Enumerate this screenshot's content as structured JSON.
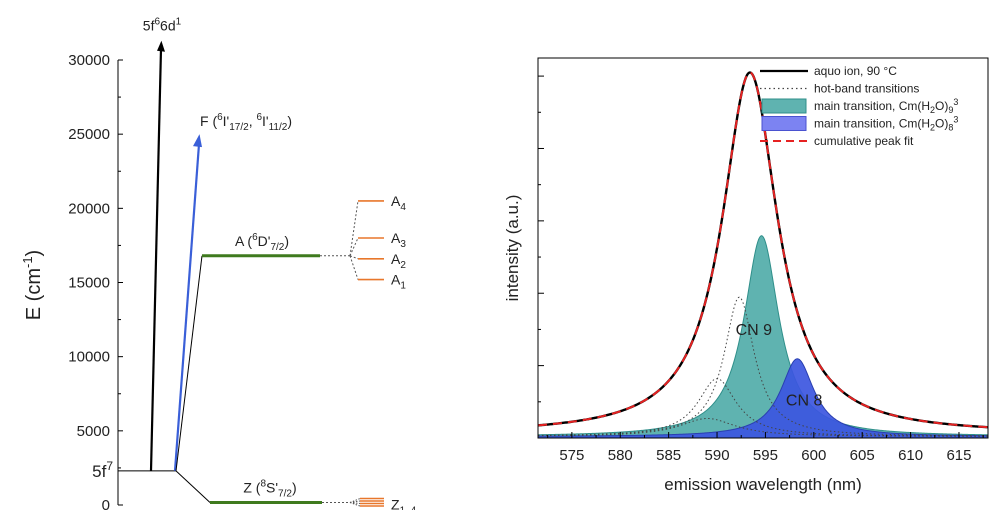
{
  "colors": {
    "black": "#000000",
    "blue": "#3a5fd8",
    "green": "#3f7a1e",
    "orange": "#e8772b",
    "teal_fill": "#5fb3b0",
    "teal_stroke": "#2f8f8a",
    "blue_fill": "#3c56e0",
    "red": "#e62222"
  },
  "chart_data": [
    {
      "type": "diagram",
      "ylabel": "E (cm",
      "ylabel_sup": "-1",
      "ylabel_end": ")",
      "yticks": [
        0,
        5000,
        10000,
        15000,
        20000,
        25000,
        30000
      ],
      "ylim": [
        0,
        31500
      ],
      "levels": {
        "ground": {
          "label": "5f",
          "sup": "7",
          "energy": 2300
        },
        "top": {
          "label_a": "5f",
          "sup_a": "6",
          "label_b": "6d",
          "sup_b": "1",
          "energy": 31300
        },
        "F": {
          "label": "F (",
          "sup1": "6",
          "t1": "I'",
          "sub1": "17/2",
          "sep": ", ",
          "sup2": "6",
          "t2": "I'",
          "sub2": "11/2",
          "end": ")",
          "energy": 25000
        },
        "A": {
          "label": "A (",
          "sup": "6",
          "t": "D'",
          "sub": "7/2",
          "end": ")",
          "energy": 16800
        },
        "Z": {
          "label": "Z (",
          "sup": "8",
          "t": "S'",
          "sub": "7/2",
          "end": ")",
          "energy": 100
        },
        "A_split": [
          {
            "name": "A",
            "sub": "4",
            "energy": 20500
          },
          {
            "name": "A",
            "sub": "3",
            "energy": 18000
          },
          {
            "name": "A",
            "sub": "2",
            "energy": 16600
          },
          {
            "name": "A",
            "sub": "1",
            "energy": 15200
          }
        ],
        "Z_split": {
          "name": "Z",
          "sub": "1–4",
          "energy": 100
        }
      }
    },
    {
      "type": "line",
      "xlabel": "emission wavelength  (nm)",
      "ylabel": "intensity (a.u.)",
      "xlim": [
        571.5,
        618
      ],
      "ylim": [
        0,
        1.05
      ],
      "xticks": [
        575,
        580,
        585,
        590,
        595,
        600,
        605,
        610,
        615
      ],
      "yticks": [
        0.2,
        0.4,
        0.6,
        0.8,
        1.0
      ],
      "legend_position": "top-right",
      "legend": [
        {
          "text": "aquo ion, 90 °C",
          "style": "solid-black"
        },
        {
          "text": "hot-band transitions",
          "style": "dotted"
        },
        {
          "text": "main transition, Cm(H",
          "sub1": "2",
          "mid": "O)",
          "sub2": "9",
          "sup": "3",
          "style": "teal-fill"
        },
        {
          "text": "main transition, Cm(H",
          "sub1": "2",
          "mid": "O)",
          "sub2": "8",
          "sup": "3",
          "style": "blue-fill"
        },
        {
          "text": "cumulative peak fit",
          "style": "red-dashed"
        }
      ],
      "annotations": [
        {
          "text": "CN 9",
          "x": 593.8,
          "y": 0.285
        },
        {
          "text": "CN 8",
          "x": 599,
          "y": 0.09
        }
      ],
      "series": [
        {
          "name": "aquo ion, 90 °C",
          "kind": "lorentzian",
          "center": 593.4,
          "hwhm": 3.5,
          "amp": 1.0,
          "base": 0.01
        },
        {
          "name": "main transition, Cm(H2O)9 3+",
          "kind": "lorentzian",
          "center": 594.6,
          "hwhm": 2.2,
          "amp": 0.555,
          "base": 0.004
        },
        {
          "name": "main transition, Cm(H2O)8 3+",
          "kind": "lorentzian",
          "center": 598.3,
          "hwhm": 2.1,
          "amp": 0.215,
          "base": 0.004
        },
        {
          "name": "hot-band transitions",
          "kind": "hotband",
          "peaks": [
            {
              "center": 592.3,
              "hwhm": 1.9,
              "amp": 0.385
            },
            {
              "center": 590.0,
              "hwhm": 2.4,
              "amp": 0.16
            },
            {
              "center": 589.0,
              "hwhm": 3.5,
              "amp": 0.05
            }
          ]
        }
      ]
    }
  ]
}
